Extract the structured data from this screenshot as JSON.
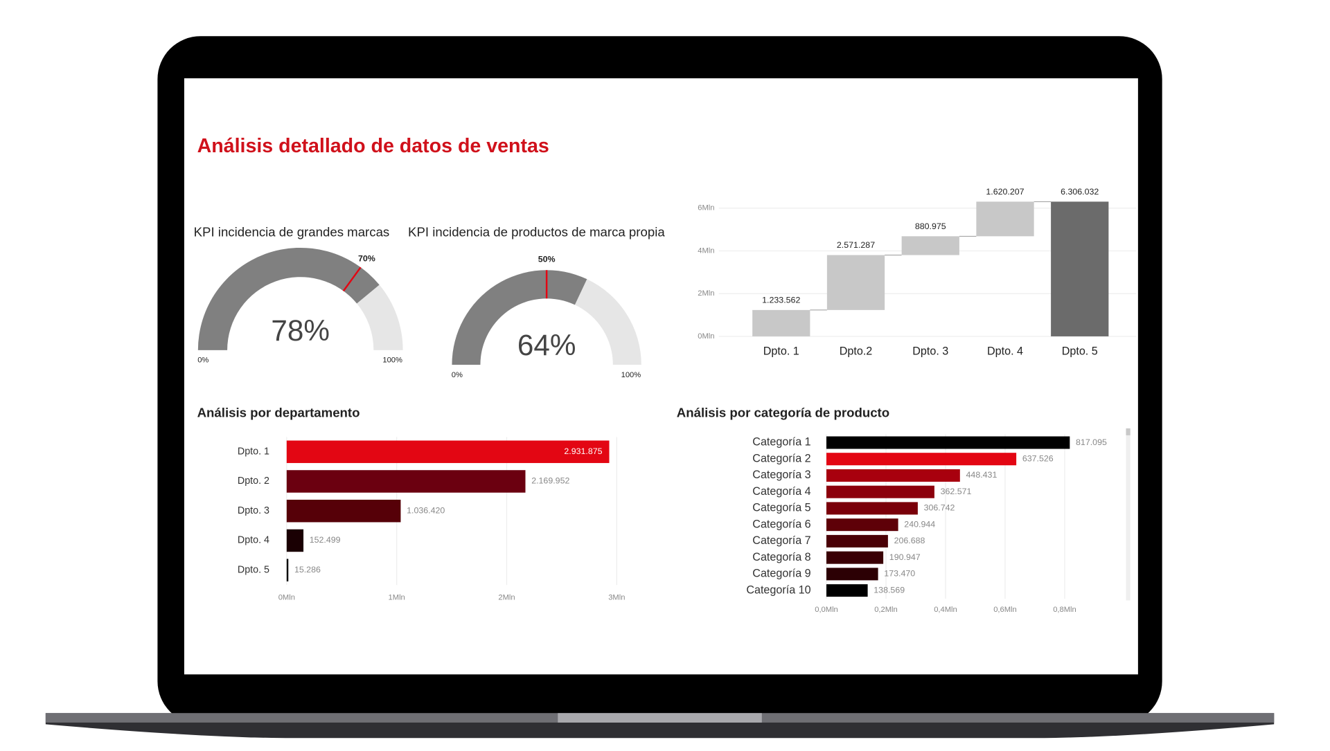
{
  "title": "Análisis detallado de datos de ventas",
  "chart_data": [
    {
      "type": "gauge",
      "title": "KPI incidencia de grandes marcas",
      "values": [
        78
      ],
      "value_labels": [
        "78%"
      ],
      "target": {
        "value": 70,
        "label": "70%"
      },
      "range": [
        {
          "value": 0,
          "label": "0%"
        },
        {
          "value": 100,
          "label": "100%"
        }
      ],
      "color": "#808080",
      "rest_color": "#e6e6e6",
      "target_color": "#e30613"
    },
    {
      "type": "gauge",
      "title": "KPI incidencia de productos de marca propia",
      "values": [
        64
      ],
      "value_labels": [
        "64%"
      ],
      "target": {
        "value": 50,
        "label": "50%"
      },
      "range": [
        {
          "value": 0,
          "label": "0%"
        },
        {
          "value": 100,
          "label": "100%"
        }
      ],
      "color": "#808080",
      "rest_color": "#e6e6e6",
      "target_color": "#e30613"
    },
    {
      "type": "waterfall",
      "categories": [
        "Dpto. 1",
        "Dpto.2",
        "Dpto. 3",
        "Dpto. 4",
        "Dpto. 5"
      ],
      "values": [
        1233562,
        2571287,
        880975,
        1620207,
        6306032
      ],
      "value_labels": [
        "1.233.562",
        "2.571.287",
        "880.975",
        "1.620.207",
        "6.306.032"
      ],
      "measure": [
        "relative",
        "relative",
        "relative",
        "relative",
        "total"
      ],
      "color": "#c8c8c8",
      "total_color": "#6b6b6b",
      "ylim": [
        0,
        6500000
      ],
      "yticks": [
        {
          "value": 0,
          "label": "0Mln"
        },
        {
          "value": 2000000,
          "label": "2Mln"
        },
        {
          "value": 4000000,
          "label": "4Mln"
        },
        {
          "value": 6000000,
          "label": "6Mln"
        }
      ],
      "grid": true
    },
    {
      "type": "hbar",
      "title": "Análisis por departamento",
      "categories": [
        "Dpto. 1",
        "Dpto. 2",
        "Dpto. 3",
        "Dpto. 4",
        "Dpto. 5"
      ],
      "values": [
        2931875,
        2169952,
        1036420,
        152499,
        15286
      ],
      "value_labels": [
        "2.931.875",
        "2.169.952",
        "1.036.420",
        "152.499",
        "15.286"
      ],
      "colors": [
        "#e30613",
        "#6b0010",
        "#560008",
        "#1a0003",
        "#000000"
      ],
      "xlim": [
        0,
        3200000
      ],
      "xticks": [
        {
          "value": 0,
          "label": "0Mln"
        },
        {
          "value": 1000000,
          "label": "1Mln"
        },
        {
          "value": 2000000,
          "label": "2Mln"
        },
        {
          "value": 3000000,
          "label": "3Mln"
        }
      ],
      "grid": true
    },
    {
      "type": "hbar",
      "title": "Análisis por categoría de producto",
      "categories": [
        "Categoría 1",
        "Categoría 2",
        "Categoría 3",
        "Categoría 4",
        "Categoría 5",
        "Categoría 6",
        "Categoría 7",
        "Categoría 8",
        "Categoría 9",
        "Categoría 10"
      ],
      "values": [
        817095,
        637526,
        448431,
        362571,
        306742,
        240944,
        206688,
        190947,
        173470,
        138569
      ],
      "value_labels": [
        "817.095",
        "637.526",
        "448.431",
        "362.571",
        "306.742",
        "240.944",
        "206.688",
        "190.947",
        "173.470",
        "138.569"
      ],
      "colors": [
        "#000000",
        "#e30613",
        "#a8000e",
        "#8c000c",
        "#7a000a",
        "#5e0008",
        "#4a0006",
        "#3a0005",
        "#2c0004",
        "#000000"
      ],
      "xlim": [
        0,
        1000000
      ],
      "xticks": [
        {
          "value": 0,
          "label": "0,0Mln"
        },
        {
          "value": 200000,
          "label": "0,2Mln"
        },
        {
          "value": 400000,
          "label": "0,4Mln"
        },
        {
          "value": 600000,
          "label": "0,6Mln"
        },
        {
          "value": 800000,
          "label": "0,8Mln"
        }
      ],
      "grid": true
    }
  ]
}
